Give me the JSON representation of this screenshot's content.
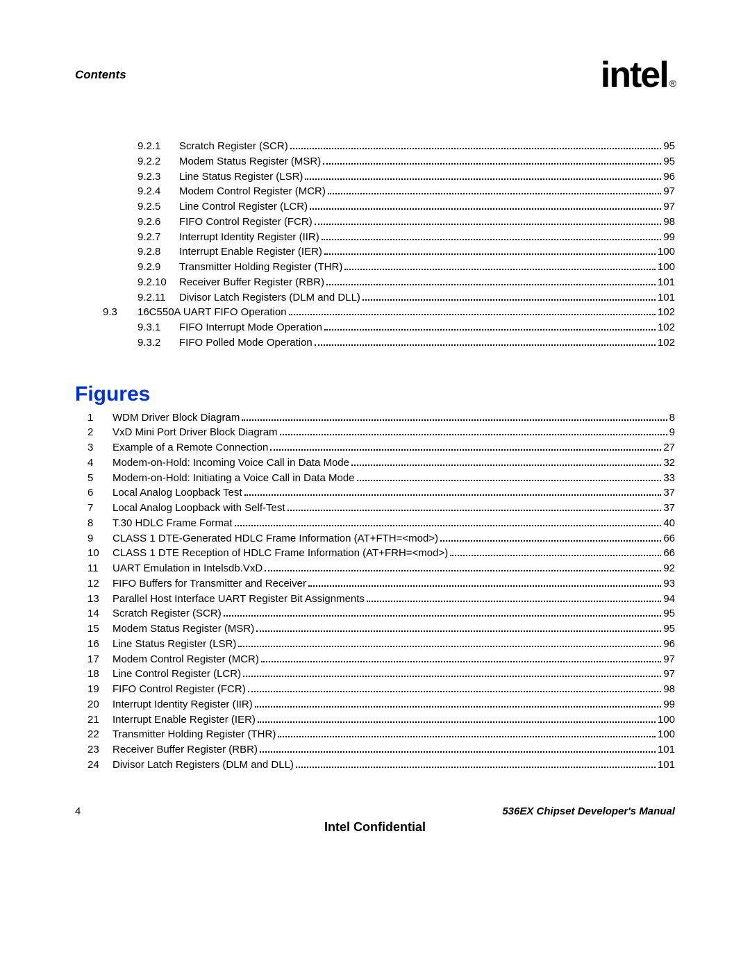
{
  "header": {
    "contents_label": "Contents",
    "logo_text": "intel",
    "logo_reg": "®"
  },
  "toc_92": [
    {
      "num": "9.2.1",
      "title": "Scratch Register (SCR)",
      "page": "95"
    },
    {
      "num": "9.2.2",
      "title": "Modem Status Register (MSR)",
      "page": "95"
    },
    {
      "num": "9.2.3",
      "title": "Line Status Register (LSR)",
      "page": "96"
    },
    {
      "num": "9.2.4",
      "title": "Modem Control Register (MCR)",
      "page": "97"
    },
    {
      "num": "9.2.5",
      "title": "Line Control Register (LCR)",
      "page": "97"
    },
    {
      "num": "9.2.6",
      "title": "FIFO Control Register (FCR)",
      "page": "98"
    },
    {
      "num": "9.2.7",
      "title": "Interrupt Identity Register (IIR)",
      "page": "99"
    },
    {
      "num": "9.2.8",
      "title": "Interrupt Enable Register (IER)",
      "page": "100"
    },
    {
      "num": "9.2.9",
      "title": "Transmitter Holding Register (THR)",
      "page": "100"
    },
    {
      "num": "9.2.10",
      "title": "Receiver Buffer Register (RBR)",
      "page": "101"
    },
    {
      "num": "9.2.11",
      "title": "Divisor Latch Registers (DLM and DLL)",
      "page": "101"
    }
  ],
  "toc_93_head": {
    "num": "9.3",
    "title": "16C550A UART FIFO Operation",
    "page": "102"
  },
  "toc_93": [
    {
      "num": "9.3.1",
      "title": "FIFO Interrupt Mode Operation",
      "page": "102"
    },
    {
      "num": "9.3.2",
      "title": "FIFO Polled Mode Operation",
      "page": "102"
    }
  ],
  "figures_heading": "Figures",
  "figures": [
    {
      "num": "1",
      "title": "WDM Driver Block Diagram",
      "page": "8"
    },
    {
      "num": "2",
      "title": "VxD Mini Port Driver Block Diagram",
      "page": "9"
    },
    {
      "num": "3",
      "title": "Example of a Remote Connection",
      "page": "27"
    },
    {
      "num": "4",
      "title": "Modem-on-Hold: Incoming Voice Call in Data Mode",
      "page": "32"
    },
    {
      "num": "5",
      "title": "Modem-on-Hold: Initiating a Voice Call in Data Mode",
      "page": "33"
    },
    {
      "num": "6",
      "title": "Local Analog Loopback Test",
      "page": "37"
    },
    {
      "num": "7",
      "title": "Local Analog Loopback with Self-Test",
      "page": "37"
    },
    {
      "num": "8",
      "title": "T.30 HDLC Frame Format",
      "page": "40"
    },
    {
      "num": "9",
      "title": "CLASS 1 DTE-Generated HDLC Frame Information (AT+FTH=<mod>)",
      "page": "66"
    },
    {
      "num": "10",
      "title": "CLASS 1 DTE Reception of HDLC Frame Information (AT+FRH=<mod>)",
      "page": "66"
    },
    {
      "num": "11",
      "title": "UART Emulation in Intelsdb.VxD",
      "page": "92"
    },
    {
      "num": "12",
      "title": "FIFO Buffers for Transmitter and Receiver",
      "page": "93"
    },
    {
      "num": "13",
      "title": "Parallel Host Interface UART Register Bit Assignments",
      "page": "94"
    },
    {
      "num": "14",
      "title": "Scratch Register (SCR)",
      "page": "95"
    },
    {
      "num": "15",
      "title": "Modem Status Register (MSR)",
      "page": "95"
    },
    {
      "num": "16",
      "title": "Line Status Register (LSR)",
      "page": "96"
    },
    {
      "num": "17",
      "title": "Modem Control Register (MCR)",
      "page": "97"
    },
    {
      "num": "18",
      "title": "Line Control Register (LCR)",
      "page": "97"
    },
    {
      "num": "19",
      "title": "FIFO Control Register (FCR)",
      "page": "98"
    },
    {
      "num": "20",
      "title": "Interrupt Identity Register (IIR)",
      "page": "99"
    },
    {
      "num": "21",
      "title": "Interrupt Enable Register (IER)",
      "page": "100"
    },
    {
      "num": "22",
      "title": "Transmitter Holding Register (THR)",
      "page": "100"
    },
    {
      "num": "23",
      "title": "Receiver Buffer Register (RBR)",
      "page": "101"
    },
    {
      "num": "24",
      "title": "Divisor Latch Registers (DLM and DLL)",
      "page": "101"
    }
  ],
  "footer": {
    "page_number": "4",
    "manual": "536EX Chipset Developer's Manual",
    "confidential": "Intel Confidential"
  }
}
